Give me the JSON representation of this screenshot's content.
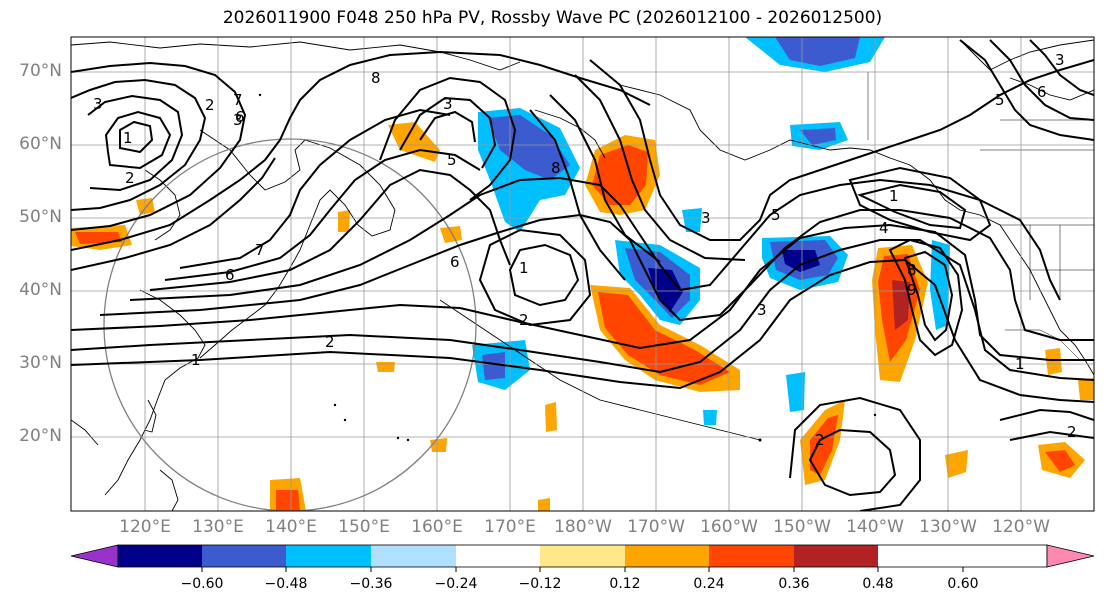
{
  "title": "2026011900 F048 250 hPa PV, Rossby Wave PC (2026012100 - 2026012500)",
  "map": {
    "lat_labels": [
      "70°N",
      "60°N",
      "50°N",
      "40°N",
      "30°N",
      "20°N"
    ],
    "lon_labels": [
      "120°E",
      "130°E",
      "140°E",
      "150°E",
      "160°E",
      "170°E",
      "180°W",
      "170°W",
      "160°W",
      "150°W",
      "140°W",
      "130°W",
      "120°W"
    ],
    "contour_labels": [
      "3",
      "1",
      "2",
      "2",
      "3",
      "6",
      "7",
      "8",
      "3",
      "6",
      "5",
      "8",
      "1",
      "2",
      "3",
      "5",
      "4",
      "8",
      "3",
      "1",
      "2",
      "1",
      "2",
      "7",
      "6",
      "1",
      "2",
      "6",
      "3",
      "5",
      "9"
    ]
  },
  "colorbar": {
    "colors": [
      "#9932cc",
      "#00008b",
      "#3b5bcf",
      "#00bfff",
      "#b0e0ff",
      "#ffffff",
      "#ffe88a",
      "#ffa500",
      "#ff4500",
      "#b22222",
      "#ff88b0"
    ],
    "tick_labels": [
      "−0.60",
      "−0.48",
      "−0.36",
      "−0.24",
      "−0.12",
      "0.12",
      "0.24",
      "0.36",
      "0.48",
      "0.60"
    ]
  }
}
